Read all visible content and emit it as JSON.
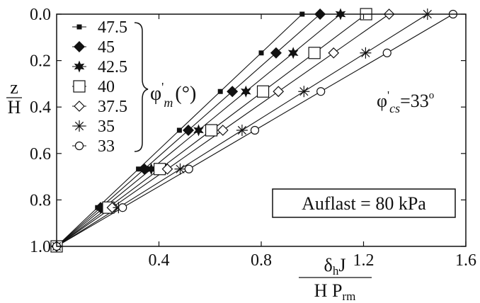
{
  "chart_data": {
    "type": "line",
    "title": "",
    "xlabel": {
      "num_sym": "δ",
      "num_sub": "h",
      "num_rest": "J",
      "den_main": "H P",
      "den_sub": "rm"
    },
    "ylabel": {
      "num": "z",
      "den": "H"
    },
    "xlim": [
      0,
      1.6
    ],
    "ylim": [
      1.0,
      0.0
    ],
    "y_inverted": true,
    "grid": false,
    "x_ticks": [
      0.4,
      0.8,
      1.2,
      1.6
    ],
    "x_tick_labels": [
      "0.4",
      "0.8",
      "1.2",
      "1.6"
    ],
    "y_ticks": [
      0.0,
      0.2,
      0.4,
      0.6,
      0.8,
      1.0
    ],
    "y_tick_labels": [
      "0.0",
      "0.2",
      "0.4",
      "0.6",
      "0.8",
      "1.0"
    ],
    "z_values": [
      1.0,
      0.833,
      0.667,
      0.5,
      0.333,
      0.167,
      0.0
    ],
    "legend_placement": "top-left",
    "legend_group_label": {
      "phi": "φ",
      "prime": "'",
      "sub": "m",
      "unit": "(°)"
    },
    "annotation_phi_cs": {
      "phi": "φ",
      "prime": "'",
      "sub": "cs",
      "rest": "=33",
      "deg": "o"
    },
    "annotation_load": "Auflast = 80 kPa",
    "series": [
      {
        "name": "47.5",
        "marker": "small-square",
        "x": [
          0.0,
          0.16,
          0.32,
          0.48,
          0.64,
          0.8,
          0.96
        ]
      },
      {
        "name": "45",
        "marker": "diamond-filled",
        "x": [
          0.0,
          0.172,
          0.343,
          0.515,
          0.687,
          0.858,
          1.03
        ]
      },
      {
        "name": "42.5",
        "marker": "star-filled",
        "x": [
          0.0,
          0.185,
          0.37,
          0.555,
          0.74,
          0.925,
          1.11
        ]
      },
      {
        "name": "40",
        "marker": "square-open",
        "x": [
          0.0,
          0.202,
          0.403,
          0.605,
          0.807,
          1.008,
          1.21
        ]
      },
      {
        "name": "37.5",
        "marker": "diamond-open",
        "x": [
          0.0,
          0.217,
          0.433,
          0.65,
          0.867,
          1.083,
          1.3
        ]
      },
      {
        "name": "35",
        "marker": "asterisk",
        "x": [
          0.0,
          0.242,
          0.483,
          0.725,
          0.967,
          1.208,
          1.45
        ]
      },
      {
        "name": "33",
        "marker": "circle-open",
        "x": [
          0.0,
          0.258,
          0.517,
          0.775,
          1.033,
          1.292,
          1.55
        ]
      }
    ]
  }
}
